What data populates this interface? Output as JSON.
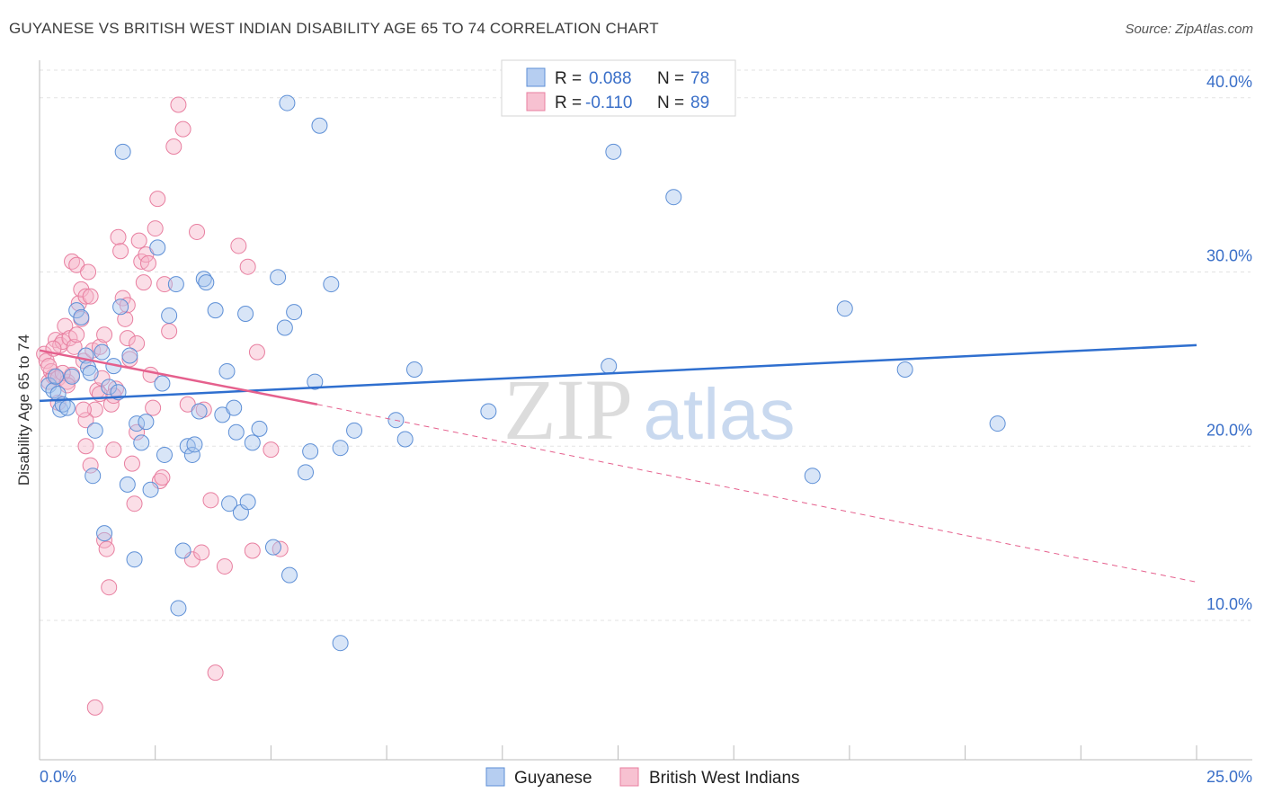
{
  "title": "GUYANESE VS BRITISH WEST INDIAN DISABILITY AGE 65 TO 74 CORRELATION CHART",
  "source": "Source: ZipAtlas.com",
  "watermark": {
    "zip": "ZIP",
    "atlas": "atlas"
  },
  "colors": {
    "blue_fill": "#a9c6ee",
    "blue_stroke": "#5d8fd6",
    "blue_line": "#2f6fcf",
    "pink_fill": "#f6b6c9",
    "pink_stroke": "#e87fa0",
    "pink_line": "#e5608d",
    "grid": "#e3e3e3",
    "tick_label": "#3a6fc8"
  },
  "legend": {
    "r_label": "R =",
    "n_label": "N =",
    "rows": [
      {
        "series": "Guyanese",
        "r": "0.088",
        "n": "78"
      },
      {
        "series": "British West Indians",
        "r": "-0.110",
        "n": "89"
      }
    ]
  },
  "chart_data": {
    "type": "scatter",
    "title": "GUYANESE VS BRITISH WEST INDIAN DISABILITY AGE 65 TO 74 CORRELATION CHART",
    "xlabel": "",
    "ylabel": "Disability Age 65 to 74",
    "xlim": [
      0,
      25
    ],
    "ylim": [
      2,
      42
    ],
    "x_tick_labels": [
      "0.0%",
      "25.0%"
    ],
    "y_ticks": [
      10,
      20,
      30,
      40
    ],
    "y_tick_labels": [
      "10.0%",
      "20.0%",
      "30.0%",
      "40.0%"
    ],
    "grid": true,
    "legend_placement": "top-center",
    "series": [
      {
        "name": "Guyanese",
        "r": 0.088,
        "n": 78,
        "trend": {
          "x": [
            0,
            25
          ],
          "y": [
            22.6,
            25.8
          ],
          "dashed_from": null
        },
        "points": [
          [
            0.2,
            23.5
          ],
          [
            0.3,
            23.2
          ],
          [
            0.35,
            24.0
          ],
          [
            0.4,
            23.0
          ],
          [
            0.45,
            22.1
          ],
          [
            0.5,
            22.4
          ],
          [
            0.6,
            22.2
          ],
          [
            0.7,
            24.0
          ],
          [
            0.8,
            27.8
          ],
          [
            0.9,
            27.4
          ],
          [
            1.0,
            25.2
          ],
          [
            1.05,
            24.5
          ],
          [
            1.1,
            24.2
          ],
          [
            1.15,
            18.3
          ],
          [
            1.2,
            20.9
          ],
          [
            1.35,
            25.4
          ],
          [
            1.4,
            15.0
          ],
          [
            1.5,
            23.4
          ],
          [
            1.6,
            24.6
          ],
          [
            1.7,
            23.1
          ],
          [
            1.75,
            28.0
          ],
          [
            1.8,
            36.9
          ],
          [
            1.9,
            17.8
          ],
          [
            1.95,
            25.2
          ],
          [
            2.05,
            13.5
          ],
          [
            2.1,
            21.3
          ],
          [
            2.2,
            20.2
          ],
          [
            2.3,
            21.4
          ],
          [
            2.4,
            17.5
          ],
          [
            2.55,
            31.4
          ],
          [
            2.65,
            23.6
          ],
          [
            2.7,
            19.5
          ],
          [
            2.8,
            27.5
          ],
          [
            2.95,
            29.3
          ],
          [
            3.0,
            10.7
          ],
          [
            3.1,
            14.0
          ],
          [
            3.2,
            20.0
          ],
          [
            3.3,
            19.5
          ],
          [
            3.35,
            20.1
          ],
          [
            3.45,
            22.0
          ],
          [
            3.55,
            29.6
          ],
          [
            3.6,
            29.4
          ],
          [
            3.8,
            27.8
          ],
          [
            3.95,
            21.8
          ],
          [
            4.05,
            24.3
          ],
          [
            4.1,
            16.7
          ],
          [
            4.2,
            22.2
          ],
          [
            4.25,
            20.8
          ],
          [
            4.35,
            16.2
          ],
          [
            4.45,
            27.6
          ],
          [
            4.5,
            16.8
          ],
          [
            4.6,
            20.2
          ],
          [
            4.75,
            21.0
          ],
          [
            5.05,
            14.2
          ],
          [
            5.15,
            29.7
          ],
          [
            5.3,
            26.8
          ],
          [
            5.35,
            39.7
          ],
          [
            5.4,
            12.6
          ],
          [
            5.5,
            27.7
          ],
          [
            5.75,
            18.5
          ],
          [
            5.85,
            19.7
          ],
          [
            5.95,
            23.7
          ],
          [
            6.05,
            38.4
          ],
          [
            6.3,
            29.3
          ],
          [
            6.5,
            19.9
          ],
          [
            6.8,
            20.9
          ],
          [
            6.5,
            8.7
          ],
          [
            7.7,
            21.5
          ],
          [
            7.9,
            20.4
          ],
          [
            8.1,
            24.4
          ],
          [
            9.7,
            22.0
          ],
          [
            12.3,
            24.6
          ],
          [
            12.4,
            36.9
          ],
          [
            13.7,
            34.3
          ],
          [
            16.7,
            18.3
          ],
          [
            17.4,
            27.9
          ],
          [
            18.7,
            24.4
          ],
          [
            20.7,
            21.3
          ]
        ]
      },
      {
        "name": "British West Indians",
        "r": -0.11,
        "n": 89,
        "trend": {
          "x": [
            0,
            6
          ],
          "y": [
            25.5,
            22.4
          ],
          "dashed_to": [
            25,
            12.2
          ]
        },
        "points": [
          [
            0.1,
            25.3
          ],
          [
            0.15,
            24.9
          ],
          [
            0.2,
            23.7
          ],
          [
            0.25,
            24.3
          ],
          [
            0.3,
            24.0
          ],
          [
            0.35,
            26.1
          ],
          [
            0.4,
            23.9
          ],
          [
            0.45,
            25.8
          ],
          [
            0.5,
            26.0
          ],
          [
            0.55,
            26.9
          ],
          [
            0.6,
            23.7
          ],
          [
            0.65,
            26.2
          ],
          [
            0.7,
            30.6
          ],
          [
            0.75,
            25.7
          ],
          [
            0.8,
            30.4
          ],
          [
            0.85,
            28.2
          ],
          [
            0.9,
            29.0
          ],
          [
            0.95,
            24.9
          ],
          [
            1.0,
            28.6
          ],
          [
            1.05,
            30.0
          ],
          [
            1.1,
            28.6
          ],
          [
            1.15,
            25.5
          ],
          [
            1.2,
            22.1
          ],
          [
            1.25,
            23.2
          ],
          [
            1.3,
            25.7
          ],
          [
            1.35,
            23.9
          ],
          [
            1.4,
            14.6
          ],
          [
            1.45,
            14.1
          ],
          [
            1.5,
            11.9
          ],
          [
            1.55,
            22.4
          ],
          [
            1.6,
            19.8
          ],
          [
            1.65,
            23.3
          ],
          [
            1.7,
            32.0
          ],
          [
            1.75,
            31.2
          ],
          [
            1.8,
            28.5
          ],
          [
            1.85,
            27.3
          ],
          [
            1.9,
            28.1
          ],
          [
            1.95,
            25.0
          ],
          [
            2.0,
            19.0
          ],
          [
            2.05,
            16.7
          ],
          [
            2.1,
            20.8
          ],
          [
            2.15,
            31.8
          ],
          [
            2.2,
            30.6
          ],
          [
            2.25,
            29.4
          ],
          [
            2.3,
            31.0
          ],
          [
            2.35,
            30.5
          ],
          [
            2.4,
            24.1
          ],
          [
            2.45,
            22.2
          ],
          [
            2.5,
            32.5
          ],
          [
            2.55,
            34.2
          ],
          [
            2.6,
            18.0
          ],
          [
            2.65,
            18.2
          ],
          [
            2.7,
            29.3
          ],
          [
            2.8,
            26.6
          ],
          [
            2.9,
            37.2
          ],
          [
            3.0,
            39.6
          ],
          [
            3.1,
            38.2
          ],
          [
            3.2,
            22.4
          ],
          [
            3.3,
            13.5
          ],
          [
            3.4,
            32.3
          ],
          [
            3.5,
            13.9
          ],
          [
            3.55,
            22.1
          ],
          [
            3.7,
            16.9
          ],
          [
            3.8,
            7.0
          ],
          [
            4.0,
            13.1
          ],
          [
            4.3,
            31.5
          ],
          [
            4.5,
            30.3
          ],
          [
            4.6,
            14.0
          ],
          [
            4.7,
            25.4
          ],
          [
            5.0,
            19.8
          ],
          [
            5.2,
            14.1
          ],
          [
            1.0,
            20.0
          ],
          [
            1.1,
            18.9
          ],
          [
            0.7,
            24.1
          ],
          [
            0.5,
            24.2
          ],
          [
            1.2,
            5.0
          ],
          [
            0.4,
            22.5
          ],
          [
            0.6,
            23.5
          ],
          [
            1.0,
            21.5
          ],
          [
            1.3,
            23.0
          ],
          [
            1.9,
            26.2
          ],
          [
            0.9,
            27.3
          ],
          [
            0.3,
            25.6
          ],
          [
            1.6,
            22.9
          ],
          [
            0.8,
            26.4
          ],
          [
            2.1,
            25.9
          ],
          [
            0.2,
            24.6
          ],
          [
            1.4,
            26.4
          ],
          [
            0.95,
            22.1
          ]
        ]
      }
    ]
  },
  "axes": {
    "ylabel": "Disability Age 65 to 74",
    "x_min_label": "0.0%",
    "x_max_label": "25.0%"
  },
  "bottom_legend": [
    "Guyanese",
    "British West Indians"
  ]
}
